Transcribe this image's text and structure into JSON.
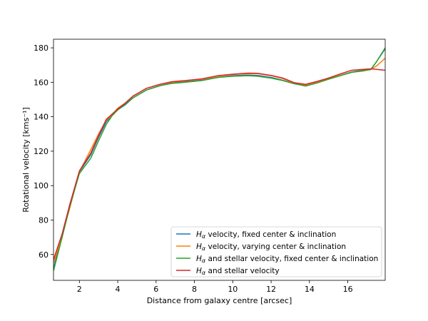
{
  "chart_data": {
    "type": "line",
    "xlabel": "Distance from galaxy centre [arcsec]",
    "ylabel": "Rotational velocity [kms⁻¹]",
    "xlim": [
      0.65,
      17.95
    ],
    "ylim": [
      45,
      185
    ],
    "xticks": [
      2,
      4,
      6,
      8,
      10,
      12,
      14,
      16
    ],
    "yticks": [
      60,
      80,
      100,
      120,
      140,
      160,
      180
    ],
    "grid": false,
    "legend_position": "lower-right",
    "series": [
      {
        "name_main": "H",
        "name_sub": "α",
        "name_rest": " velocity, fixed center & inclination",
        "color": "#1f77b4",
        "x": [
          0.65,
          1.1,
          1.5,
          2.0,
          2.6,
          3.0,
          3.4,
          3.7,
          4.0,
          4.4,
          4.8,
          5.5,
          6.2,
          6.8,
          7.5,
          8.4,
          9.2,
          10.0,
          10.8,
          11.3,
          12.0,
          12.6,
          13.2,
          13.8,
          14.4,
          15.0,
          15.6,
          16.2,
          16.8,
          17.2,
          17.5,
          17.95
        ],
        "y": [
          52,
          71,
          89,
          108,
          118,
          128,
          137,
          141,
          144,
          147,
          151,
          155.5,
          158,
          159.5,
          160.3,
          161.2,
          162.8,
          163.8,
          164.2,
          164,
          162.8,
          161.2,
          159.2,
          158.2,
          159.8,
          162,
          164,
          166,
          167,
          167.4,
          172,
          179.5
        ]
      },
      {
        "name_main": "H",
        "name_sub": "α",
        "name_rest": " velocity, varying center & inclination",
        "color": "#ff7f0e",
        "x": [
          0.65,
          1.1,
          1.5,
          2.0,
          2.6,
          3.0,
          3.4,
          3.7,
          4.0,
          4.4,
          4.8,
          5.5,
          6.2,
          6.8,
          7.5,
          8.4,
          9.2,
          10.0,
          10.8,
          11.3,
          12.0,
          12.6,
          13.2,
          13.8,
          14.4,
          15.0,
          15.6,
          16.2,
          16.8,
          17.2,
          17.5,
          17.95
        ],
        "y": [
          55,
          71,
          87,
          108,
          121,
          130,
          138,
          141,
          145,
          148,
          152,
          156.5,
          158.8,
          160,
          160.8,
          161.8,
          163.5,
          164.5,
          165,
          165,
          163.8,
          162.2,
          159.5,
          158.5,
          160,
          162.2,
          164,
          165.8,
          166.5,
          167.5,
          169.5,
          174
        ]
      },
      {
        "name_main": "H",
        "name_sub": "α",
        "name_rest": " and stellar velocity, fixed center & inclination",
        "color": "#2ca02c",
        "x": [
          0.65,
          1.1,
          1.5,
          2.0,
          2.6,
          3.0,
          3.4,
          3.7,
          4.0,
          4.4,
          4.8,
          5.5,
          6.2,
          6.8,
          7.5,
          8.4,
          9.2,
          10.0,
          10.8,
          11.3,
          12.0,
          12.6,
          13.2,
          13.8,
          14.4,
          15.0,
          15.6,
          16.2,
          16.8,
          17.2,
          17.5,
          17.95
        ],
        "y": [
          50.5,
          70,
          88,
          107,
          116,
          126,
          135.5,
          140.5,
          144,
          147.5,
          151,
          155.5,
          158,
          159.3,
          160,
          161,
          162.8,
          163.5,
          163.8,
          163.5,
          162.4,
          161,
          159.2,
          157.8,
          159.6,
          161.8,
          163.8,
          165.8,
          166.8,
          167.4,
          172,
          180
        ]
      },
      {
        "name_main": "H",
        "name_sub": "α",
        "name_rest": " and stellar velocity",
        "color": "#d62728",
        "x": [
          0.65,
          1.1,
          1.5,
          2.0,
          2.6,
          3.0,
          3.4,
          3.7,
          4.0,
          4.4,
          4.8,
          5.5,
          6.2,
          6.8,
          7.5,
          8.4,
          9.2,
          10.0,
          10.8,
          11.3,
          12.0,
          12.6,
          13.2,
          13.8,
          14.4,
          15.0,
          15.6,
          16.2,
          16.8,
          17.2,
          17.5,
          17.95
        ],
        "y": [
          57,
          72,
          89,
          108.5,
          119,
          129,
          138.5,
          141.5,
          144.5,
          148,
          152,
          156.5,
          158.8,
          160.3,
          161,
          162,
          163.8,
          164.7,
          165.3,
          165.2,
          164,
          162.5,
          159.8,
          158.8,
          160.5,
          162.5,
          164.8,
          167,
          167.5,
          167.8,
          167.5,
          167
        ]
      }
    ]
  }
}
